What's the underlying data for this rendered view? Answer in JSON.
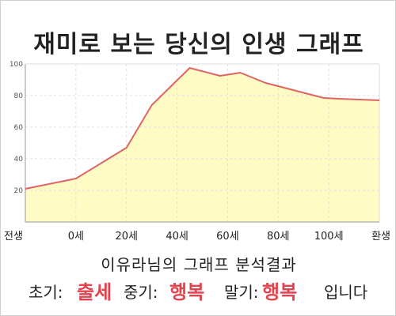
{
  "page": {
    "title": "재미로 보는 당신의 인생 그래프",
    "subtitle": "이유라님의 그래프 분석결과",
    "result": {
      "early_label": "초기:",
      "early_value": "출세",
      "mid_label": "중기:",
      "mid_value": "행복",
      "late_label": "말기:",
      "late_value": "행복",
      "ending": "입니다"
    }
  },
  "colors": {
    "area_fill": "#fffbc4",
    "line": "#e06464",
    "grid": "#e0e0e0",
    "highlight": "#e3434f"
  },
  "chart_data": {
    "type": "area",
    "x": [
      "전생",
      "0세",
      "20세",
      "40세",
      "60세",
      "80세",
      "100세",
      "환생"
    ],
    "x_values": [
      -20,
      0,
      20,
      40,
      60,
      80,
      100,
      120
    ],
    "xlim": [
      -20,
      120
    ],
    "ylim": [
      0,
      100
    ],
    "yticks": [
      20,
      40,
      60,
      80,
      100
    ],
    "grid": true,
    "series": [
      {
        "points": [
          [
            -20,
            21
          ],
          [
            0,
            27.5
          ],
          [
            20,
            47
          ],
          [
            30,
            74
          ],
          [
            45,
            97.5
          ],
          [
            57,
            92.5
          ],
          [
            65,
            94.5
          ],
          [
            75,
            88
          ],
          [
            98,
            78.5
          ],
          [
            104,
            78
          ],
          [
            120,
            77
          ]
        ]
      }
    ]
  }
}
